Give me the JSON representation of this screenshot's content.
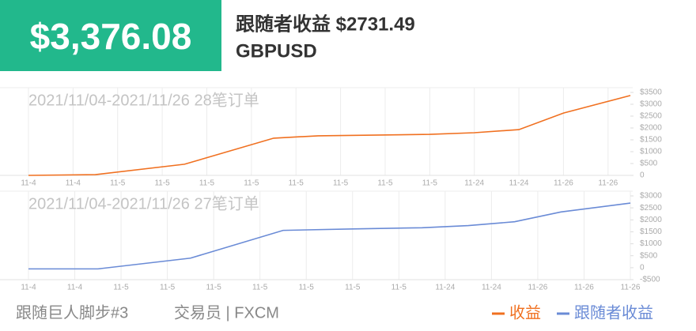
{
  "header": {
    "amount": "$3,376.08",
    "title": "跟随者收益 $2731.49",
    "symbol": "GBPUSD"
  },
  "chart_data": [
    {
      "type": "line",
      "subtitle": "2021/11/04-2021/11/26 28笔订单",
      "grid": "x",
      "x": [
        0,
        1.5,
        3.5,
        5.5,
        6.5,
        9,
        10,
        11,
        12,
        13.5
      ],
      "xlim": [
        0,
        13.5
      ],
      "xticks": [
        {
          "value": 0,
          "label": "11-4"
        },
        {
          "value": 1,
          "label": "11-4"
        },
        {
          "value": 2,
          "label": "11-5"
        },
        {
          "value": 3,
          "label": "11-5"
        },
        {
          "value": 4,
          "label": "11-5"
        },
        {
          "value": 5,
          "label": "11-5"
        },
        {
          "value": 6,
          "label": "11-5"
        },
        {
          "value": 7,
          "label": "11-5"
        },
        {
          "value": 8,
          "label": "11-5"
        },
        {
          "value": 9,
          "label": "11-5"
        },
        {
          "value": 10,
          "label": "11-24"
        },
        {
          "value": 11,
          "label": "11-24"
        },
        {
          "value": 12,
          "label": "11-26"
        },
        {
          "value": 13,
          "label": "11-26"
        }
      ],
      "ylim": [
        0,
        3500
      ],
      "yticks": [
        0,
        {
          "value": 500,
          "label": "$500"
        },
        {
          "value": 1000,
          "label": "$1000"
        },
        {
          "value": 1500,
          "label": "$1500"
        },
        {
          "value": 2000,
          "label": "$2000"
        },
        {
          "value": 2500,
          "label": "$2500"
        },
        {
          "value": 3000,
          "label": "$3000"
        },
        {
          "value": 3500,
          "label": "$3500"
        }
      ],
      "series": [
        {
          "name": "收益",
          "color": "#f07020",
          "values": [
            0,
            30,
            470,
            1570,
            1670,
            1730,
            1800,
            1930,
            2630,
            3370
          ]
        }
      ]
    },
    {
      "type": "line",
      "subtitle": "2021/11/04-2021/11/26 27笔订单",
      "grid": "x",
      "x": [
        0,
        1.5,
        3.5,
        5.5,
        7,
        8.5,
        9.5,
        10.5,
        11.5,
        13
      ],
      "xlim": [
        0,
        13
      ],
      "xticks": [
        {
          "value": 0,
          "label": "11-4"
        },
        {
          "value": 1,
          "label": "11-4"
        },
        {
          "value": 2,
          "label": "11-5"
        },
        {
          "value": 3,
          "label": "11-5"
        },
        {
          "value": 4,
          "label": "11-5"
        },
        {
          "value": 5,
          "label": "11-5"
        },
        {
          "value": 6,
          "label": "11-5"
        },
        {
          "value": 7,
          "label": "11-5"
        },
        {
          "value": 8,
          "label": "11-5"
        },
        {
          "value": 9,
          "label": "11-24"
        },
        {
          "value": 10,
          "label": "11-24"
        },
        {
          "value": 11,
          "label": "11-26"
        },
        {
          "value": 12,
          "label": "11-26"
        },
        {
          "value": 13,
          "label": "11-26"
        }
      ],
      "ylim": [
        -500,
        3000
      ],
      "yticks": [
        {
          "value": -500,
          "label": "-$500"
        },
        0,
        {
          "value": 500,
          "label": "$500"
        },
        {
          "value": 1000,
          "label": "$1000"
        },
        {
          "value": 1500,
          "label": "$1500"
        },
        {
          "value": 2000,
          "label": "$2000"
        },
        {
          "value": 2500,
          "label": "$2500"
        },
        {
          "value": 3000,
          "label": "$3000"
        }
      ],
      "series": [
        {
          "name": "跟随者收益",
          "color": "#6a8bd6",
          "values": [
            -50,
            -50,
            400,
            1560,
            1620,
            1670,
            1760,
            1920,
            2330,
            2700
          ]
        }
      ]
    }
  ],
  "footer": {
    "strategy": "跟随巨人脚步#3",
    "trader": "交易员 | FXCM"
  }
}
